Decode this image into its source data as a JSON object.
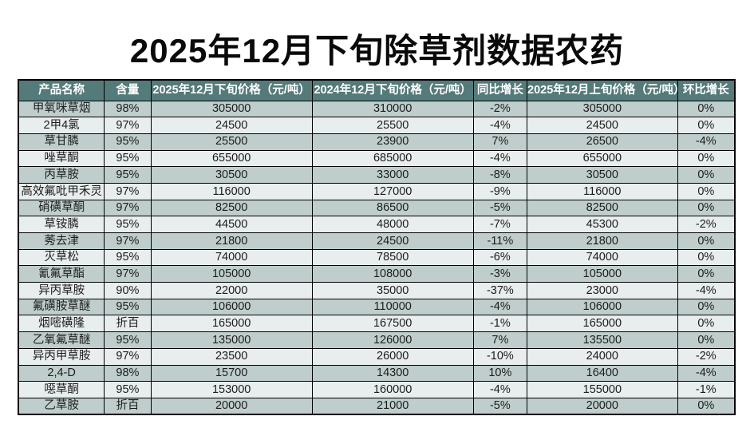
{
  "title": "2025年12月下旬除草剂数据农药",
  "chart_data": {
    "type": "table",
    "title": "2025年12月下旬除草剂数据农药",
    "columns": [
      "产品名称",
      "含量",
      "2025年12月下旬价格（元/吨）",
      "2024年12月下旬价格（元/吨）",
      "同比增长",
      "2025年12月上旬价格（元/吨）",
      "环比增长"
    ],
    "rows": [
      [
        "甲氧咪草烟",
        "98%",
        "305000",
        "310000",
        "-2%",
        "305000",
        "0%"
      ],
      [
        "2甲4氯",
        "97%",
        "24500",
        "25500",
        "-4%",
        "24500",
        "0%"
      ],
      [
        "草甘膦",
        "95%",
        "25500",
        "23900",
        "7%",
        "26500",
        "-4%"
      ],
      [
        "唑草酮",
        "95%",
        "655000",
        "685000",
        "-4%",
        "655000",
        "0%"
      ],
      [
        "丙草胺",
        "95%",
        "30500",
        "33000",
        "-8%",
        "30500",
        "0%"
      ],
      [
        "高效氟吡甲禾灵",
        "97%",
        "116000",
        "127000",
        "-9%",
        "116000",
        "0%"
      ],
      [
        "硝磺草酮",
        "97%",
        "82500",
        "86500",
        "-5%",
        "82500",
        "0%"
      ],
      [
        "草铵膦",
        "95%",
        "44500",
        "48000",
        "-7%",
        "45300",
        "-2%"
      ],
      [
        "莠去津",
        "97%",
        "21800",
        "24500",
        "-11%",
        "21800",
        "0%"
      ],
      [
        "灭草松",
        "95%",
        "74000",
        "78500",
        "-6%",
        "74000",
        "0%"
      ],
      [
        "氰氟草酯",
        "97%",
        "105000",
        "108000",
        "-3%",
        "105000",
        "0%"
      ],
      [
        "异丙草胺",
        "90%",
        "22000",
        "35000",
        "-37%",
        "23000",
        "-4%"
      ],
      [
        "氟磺胺草醚",
        "95%",
        "106000",
        "110000",
        "-4%",
        "106000",
        "0%"
      ],
      [
        "烟嘧磺隆",
        "折百",
        "165000",
        "167500",
        "-1%",
        "165000",
        "0%"
      ],
      [
        "乙氧氟草醚",
        "95%",
        "135000",
        "126000",
        "7%",
        "135500",
        "0%"
      ],
      [
        "异丙甲草胺",
        "97%",
        "23500",
        "26000",
        "-10%",
        "24000",
        "-2%"
      ],
      [
        "2,4-D",
        "98%",
        "15700",
        "14300",
        "10%",
        "16400",
        "-4%"
      ],
      [
        "噁草酮",
        "95%",
        "153000",
        "160000",
        "-4%",
        "155000",
        "-1%"
      ],
      [
        "乙草胺",
        "折百",
        "20000",
        "21000",
        "-5%",
        "20000",
        "0%"
      ]
    ]
  },
  "colors": {
    "page_bg": "#ffffff",
    "header_bg": "#547a7a",
    "header_text": "#ffffff",
    "row_odd_bg": "#bfcecc",
    "row_even_bg": "#e8eeed",
    "border": "#000000",
    "cell_text": "#1c1c1c",
    "title_text": "#0a0a0a"
  }
}
